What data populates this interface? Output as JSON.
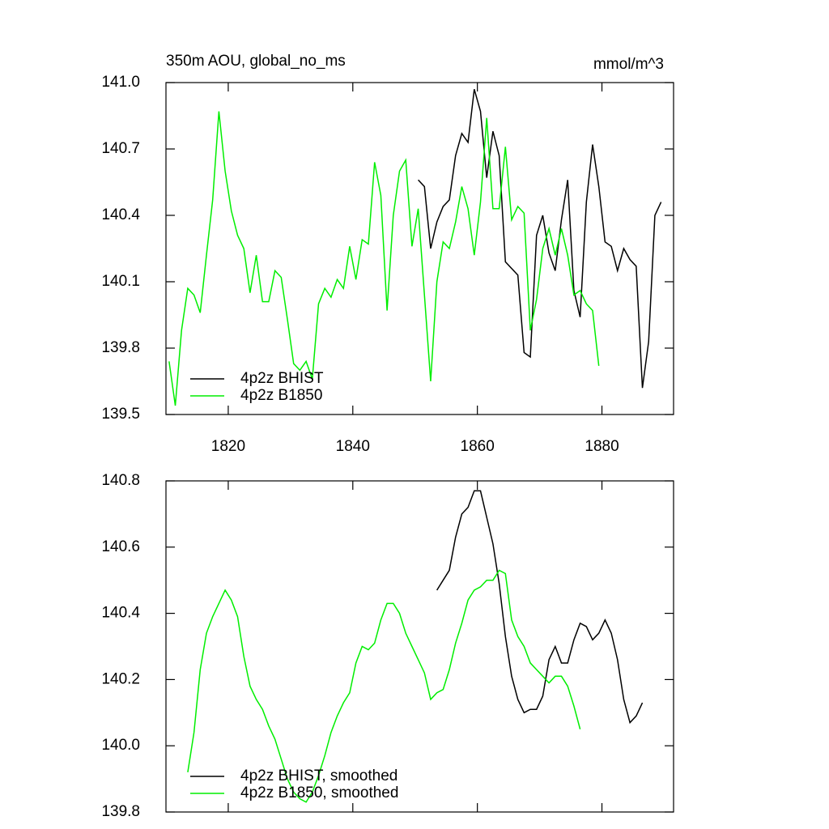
{
  "chart_data": [
    {
      "type": "line",
      "title": "350m AOU, global_no_ms",
      "units": "mmol/m^3",
      "xlim": [
        1810,
        1891.5
      ],
      "xticks": [
        1820,
        1840,
        1860,
        1880
      ],
      "ylim": [
        139.5,
        141.0
      ],
      "yticks": [
        139.5,
        139.8,
        140.1,
        140.4,
        140.7,
        {
          "value": 141.0,
          "label": "141.0"
        }
      ],
      "legend": "lower left",
      "series": [
        {
          "name": "4p2z BHIST",
          "color": "#000000",
          "x": [
            1850.5,
            1851.5,
            1852.5,
            1853.5,
            1854.5,
            1855.5,
            1856.5,
            1857.5,
            1858.5,
            1859.5,
            1860.5,
            1861.5,
            1862.5,
            1863.5,
            1864.5,
            1865.5,
            1866.5,
            1867.5,
            1868.5,
            1869.5,
            1870.5,
            1871.5,
            1872.5,
            1873.5,
            1874.5,
            1875.5,
            1876.5,
            1877.5,
            1878.5,
            1879.5,
            1880.5,
            1881.5,
            1882.5,
            1883.5,
            1884.5,
            1885.5,
            1886.5,
            1887.5,
            1888.5,
            1889.5
          ],
          "values": [
            140.56,
            140.53,
            140.25,
            140.37,
            140.44,
            140.47,
            140.67,
            140.77,
            140.73,
            140.97,
            140.87,
            140.57,
            140.78,
            140.67,
            140.19,
            140.16,
            140.13,
            139.78,
            139.76,
            140.31,
            140.4,
            140.23,
            140.15,
            140.38,
            140.56,
            140.06,
            139.94,
            140.46,
            140.72,
            140.53,
            140.28,
            140.26,
            140.15,
            140.25,
            140.2,
            140.17,
            139.62,
            139.83,
            140.4,
            140.46
          ]
        },
        {
          "name": "4p2z B1850",
          "color": "#00ee00",
          "x": [
            1810.5,
            1811.5,
            1812.5,
            1813.5,
            1814.5,
            1815.5,
            1816.5,
            1817.5,
            1818.5,
            1819.5,
            1820.5,
            1821.5,
            1822.5,
            1823.5,
            1824.5,
            1825.5,
            1826.5,
            1827.5,
            1828.5,
            1829.5,
            1830.5,
            1831.5,
            1832.5,
            1833.5,
            1834.5,
            1835.5,
            1836.5,
            1837.5,
            1838.5,
            1839.5,
            1840.5,
            1841.5,
            1842.5,
            1843.5,
            1844.5,
            1845.5,
            1846.5,
            1847.5,
            1848.5,
            1849.5,
            1850.5,
            1851.5,
            1852.5,
            1853.5,
            1854.5,
            1855.5,
            1856.5,
            1857.5,
            1858.5,
            1859.5,
            1860.5,
            1861.5,
            1862.5,
            1863.5,
            1864.5,
            1865.5,
            1866.5,
            1867.5,
            1868.5,
            1869.5,
            1870.5,
            1871.5,
            1872.5,
            1873.5,
            1874.5,
            1875.5,
            1876.5,
            1877.5,
            1878.5,
            1879.5
          ],
          "values": [
            139.74,
            139.54,
            139.88,
            140.07,
            140.04,
            139.96,
            140.22,
            140.47,
            140.87,
            140.6,
            140.42,
            140.31,
            140.25,
            140.05,
            140.22,
            140.01,
            140.01,
            140.15,
            140.12,
            139.93,
            139.73,
            139.7,
            139.74,
            139.66,
            140.0,
            140.07,
            140.03,
            140.11,
            140.07,
            140.26,
            140.11,
            140.29,
            140.27,
            140.64,
            140.49,
            139.97,
            140.4,
            140.6,
            140.65,
            140.26,
            140.43,
            140.04,
            139.65,
            140.1,
            140.28,
            140.25,
            140.37,
            140.53,
            140.43,
            140.22,
            140.46,
            140.84,
            140.43,
            140.43,
            140.71,
            140.38,
            140.44,
            140.41,
            139.88,
            140.02,
            140.25,
            140.34,
            140.22,
            140.34,
            140.22,
            140.04,
            140.06,
            140.0,
            139.97,
            139.72
          ]
        }
      ]
    },
    {
      "type": "line",
      "xlim": [
        1810,
        1891.5
      ],
      "xticks": [
        1820,
        1840,
        1860,
        1880
      ],
      "ylim": [
        139.8,
        140.8
      ],
      "yticks": [
        139.8,
        {
          "value": 140.0,
          "label": "140.0"
        },
        140.2,
        140.4,
        140.6,
        140.8
      ],
      "legend": "lower left",
      "series": [
        {
          "name": "4p2z BHIST, smoothed",
          "color": "#000000",
          "x": [
            1853.5,
            1854.5,
            1855.5,
            1856.5,
            1857.5,
            1858.5,
            1859.5,
            1860.5,
            1861.5,
            1862.5,
            1863.5,
            1864.5,
            1865.5,
            1866.5,
            1867.5,
            1868.5,
            1869.5,
            1870.5,
            1871.5,
            1872.5,
            1873.5,
            1874.5,
            1875.5,
            1876.5,
            1877.5,
            1878.5,
            1879.5,
            1880.5,
            1881.5,
            1882.5,
            1883.5,
            1884.5,
            1885.5,
            1886.5
          ],
          "values": [
            140.47,
            140.5,
            140.53,
            140.63,
            140.7,
            140.72,
            140.77,
            140.77,
            140.69,
            140.61,
            140.49,
            140.33,
            140.21,
            140.14,
            140.1,
            140.11,
            140.11,
            140.15,
            140.26,
            140.3,
            140.25,
            140.25,
            140.32,
            140.37,
            140.36,
            140.32,
            140.34,
            140.38,
            140.34,
            140.26,
            140.14,
            140.07,
            140.09,
            140.13
          ]
        },
        {
          "name": "4p2z B1850, smoothed",
          "color": "#00ee00",
          "x": [
            1813.5,
            1814.5,
            1815.5,
            1816.5,
            1817.5,
            1818.5,
            1819.5,
            1820.5,
            1821.5,
            1822.5,
            1823.5,
            1824.5,
            1825.5,
            1826.5,
            1827.5,
            1828.5,
            1829.5,
            1830.5,
            1831.5,
            1832.5,
            1833.5,
            1834.5,
            1835.5,
            1836.5,
            1837.5,
            1838.5,
            1839.5,
            1840.5,
            1841.5,
            1842.5,
            1843.5,
            1844.5,
            1845.5,
            1846.5,
            1847.5,
            1848.5,
            1849.5,
            1850.5,
            1851.5,
            1852.5,
            1853.5,
            1854.5,
            1855.5,
            1856.5,
            1857.5,
            1858.5,
            1859.5,
            1860.5,
            1861.5,
            1862.5,
            1863.5,
            1864.5,
            1865.5,
            1866.5,
            1867.5,
            1868.5,
            1869.5,
            1870.5,
            1871.5,
            1872.5,
            1873.5,
            1874.5,
            1875.5,
            1876.5
          ],
          "values": [
            139.92,
            140.04,
            140.23,
            140.34,
            140.39,
            140.43,
            140.47,
            140.44,
            140.39,
            140.27,
            140.18,
            140.14,
            140.11,
            140.06,
            140.02,
            139.96,
            139.9,
            139.86,
            139.84,
            139.83,
            139.86,
            139.91,
            139.97,
            140.04,
            140.09,
            140.13,
            140.16,
            140.25,
            140.3,
            140.29,
            140.31,
            140.38,
            140.43,
            140.43,
            140.4,
            140.34,
            140.3,
            140.26,
            140.22,
            140.14,
            140.16,
            140.17,
            140.23,
            140.31,
            140.37,
            140.44,
            140.47,
            140.48,
            140.5,
            140.5,
            140.53,
            140.52,
            140.38,
            140.33,
            140.3,
            140.25,
            140.23,
            140.21,
            140.19,
            140.21,
            140.21,
            140.18,
            140.12,
            140.05
          ]
        }
      ]
    }
  ]
}
